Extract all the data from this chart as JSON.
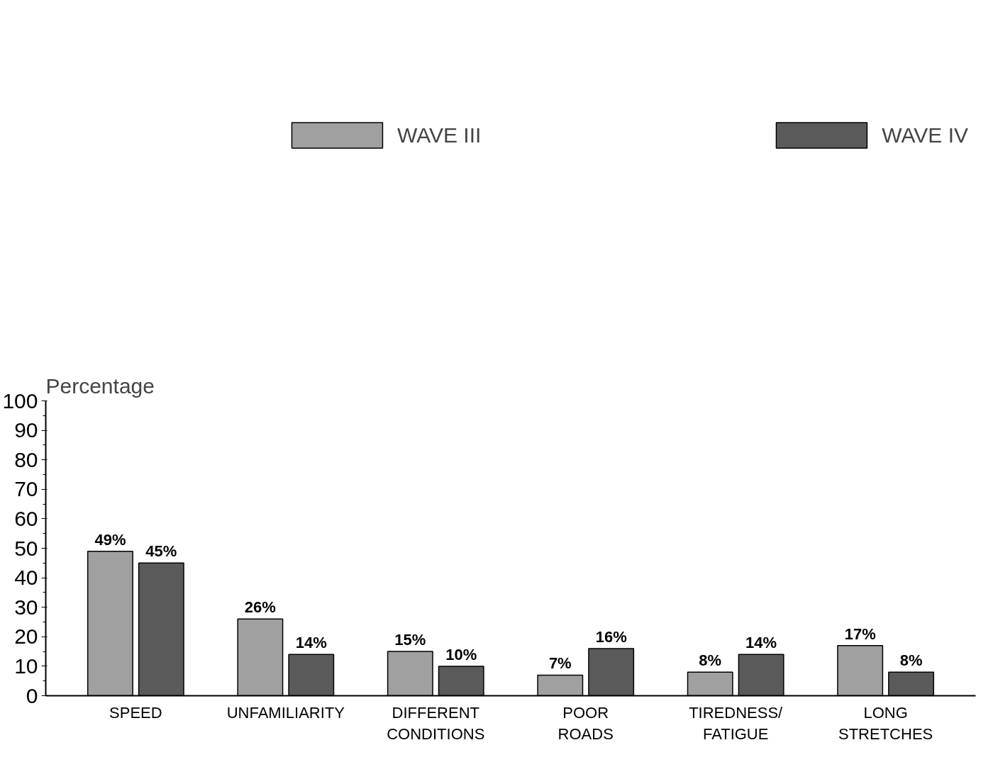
{
  "chart_data": {
    "type": "bar",
    "ylabel": "Percentage",
    "legend": "top",
    "categories": [
      "SPEED",
      "UNFAMILIARITY",
      "DIFFERENT\nCONDITIONS",
      "POOR\nROADS",
      "TIREDNESS/\nFATIGUE",
      "LONG\nSTRETCHES"
    ],
    "series": [
      {
        "name": "WAVE III",
        "color": "#a0a0a0",
        "values": [
          49,
          26,
          15,
          7,
          8,
          17
        ],
        "value_labels": [
          "49%",
          "26%",
          "15%",
          "7%",
          "8%",
          "17%"
        ]
      },
      {
        "name": "WAVE IV",
        "color": "#5a5a5a",
        "values": [
          45,
          14,
          10,
          16,
          14,
          8
        ],
        "value_labels": [
          "45%",
          "14%",
          "10%",
          "16%",
          "14%",
          "8%"
        ]
      }
    ],
    "ylim": [
      0,
      100
    ],
    "yticks": [
      0,
      10,
      20,
      30,
      40,
      50,
      60,
      70,
      80,
      90,
      100
    ],
    "grid": false
  }
}
